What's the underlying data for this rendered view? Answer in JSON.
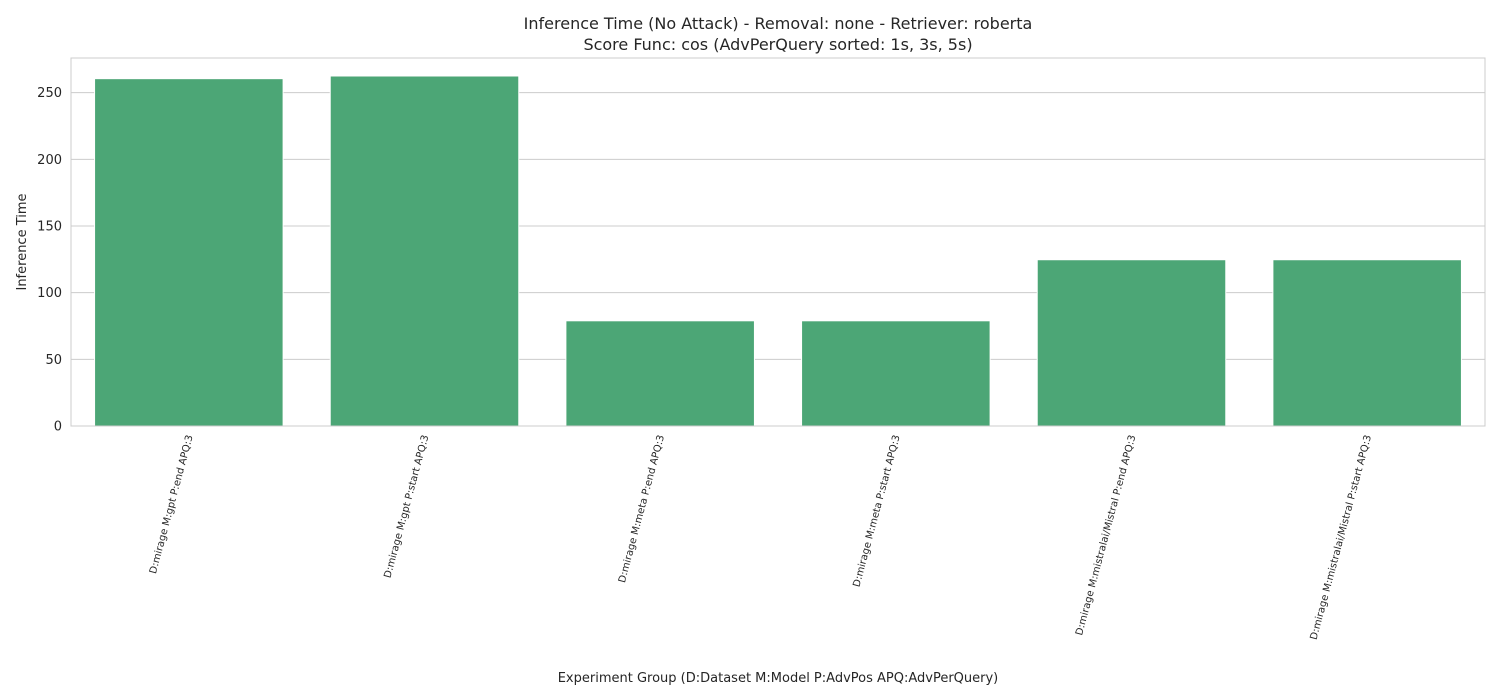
{
  "chart_data": {
    "type": "bar",
    "title_line1": "Inference Time (No Attack) - Removal: none - Retriever: roberta",
    "title_line2": "Score Func: cos (AdvPerQuery sorted: 1s, 3s, 5s)",
    "xlabel": "Experiment Group (D:Dataset M:Model P:AdvPos APQ:AdvPerQuery)",
    "ylabel": "Inference Time",
    "categories": [
      "D:mirage M:gpt P:end APQ:3",
      "D:mirage M:gpt P:start APQ:3",
      "D:mirage M:meta P:end APQ:3",
      "D:mirage M:meta P:start APQ:3",
      "D:mirage M:mistralai/Mistral P:end APQ:3",
      "D:mirage M:mistralai/Mistral P:start APQ:3"
    ],
    "values": [
      260.5,
      262.5,
      78.9,
      78.9,
      124.7,
      124.7
    ],
    "ylim": [
      0,
      276
    ],
    "yticks": [
      0,
      50,
      100,
      150,
      200,
      250
    ],
    "grid": true,
    "bar_color": "#4ca676"
  }
}
